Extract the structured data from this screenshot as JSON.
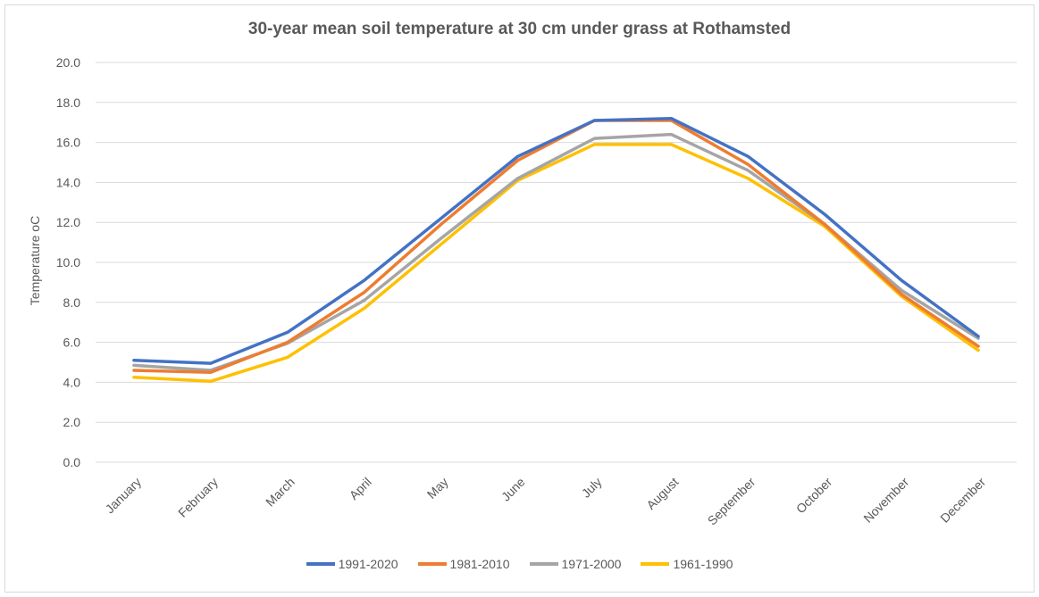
{
  "chart_data": {
    "type": "line",
    "title": "30-year mean soil temperature at 30 cm under grass at Rothamsted",
    "ylabel": "Temperature oC",
    "xlabel": "",
    "ylim": [
      0,
      20
    ],
    "y_ticks": [
      "0.0",
      "2.0",
      "4.0",
      "6.0",
      "8.0",
      "10.0",
      "12.0",
      "14.0",
      "16.0",
      "18.0",
      "20.0"
    ],
    "grid": true,
    "legend_position": "bottom",
    "categories": [
      "January",
      "February",
      "March",
      "April",
      "May",
      "June",
      "July",
      "August",
      "September",
      "October",
      "November",
      "December"
    ],
    "series": [
      {
        "name": "1991-2020",
        "color": "#4472c4",
        "values": [
          5.1,
          4.95,
          6.5,
          9.1,
          12.2,
          15.3,
          17.1,
          17.2,
          15.3,
          12.4,
          9.1,
          6.3
        ]
      },
      {
        "name": "1981-2010",
        "color": "#ed7d31",
        "values": [
          4.6,
          4.5,
          6.0,
          8.5,
          11.9,
          15.1,
          17.1,
          17.1,
          14.9,
          11.9,
          8.4,
          5.8
        ]
      },
      {
        "name": "1971-2000",
        "color": "#a5a5a5",
        "values": [
          4.85,
          4.6,
          5.95,
          8.1,
          11.2,
          14.2,
          16.2,
          16.4,
          14.6,
          11.9,
          8.6,
          6.2
        ]
      },
      {
        "name": "1961-1990",
        "color": "#ffc000",
        "values": [
          4.25,
          4.05,
          5.25,
          7.7,
          10.9,
          14.1,
          15.9,
          15.9,
          14.2,
          11.8,
          8.3,
          5.6
        ]
      }
    ]
  }
}
